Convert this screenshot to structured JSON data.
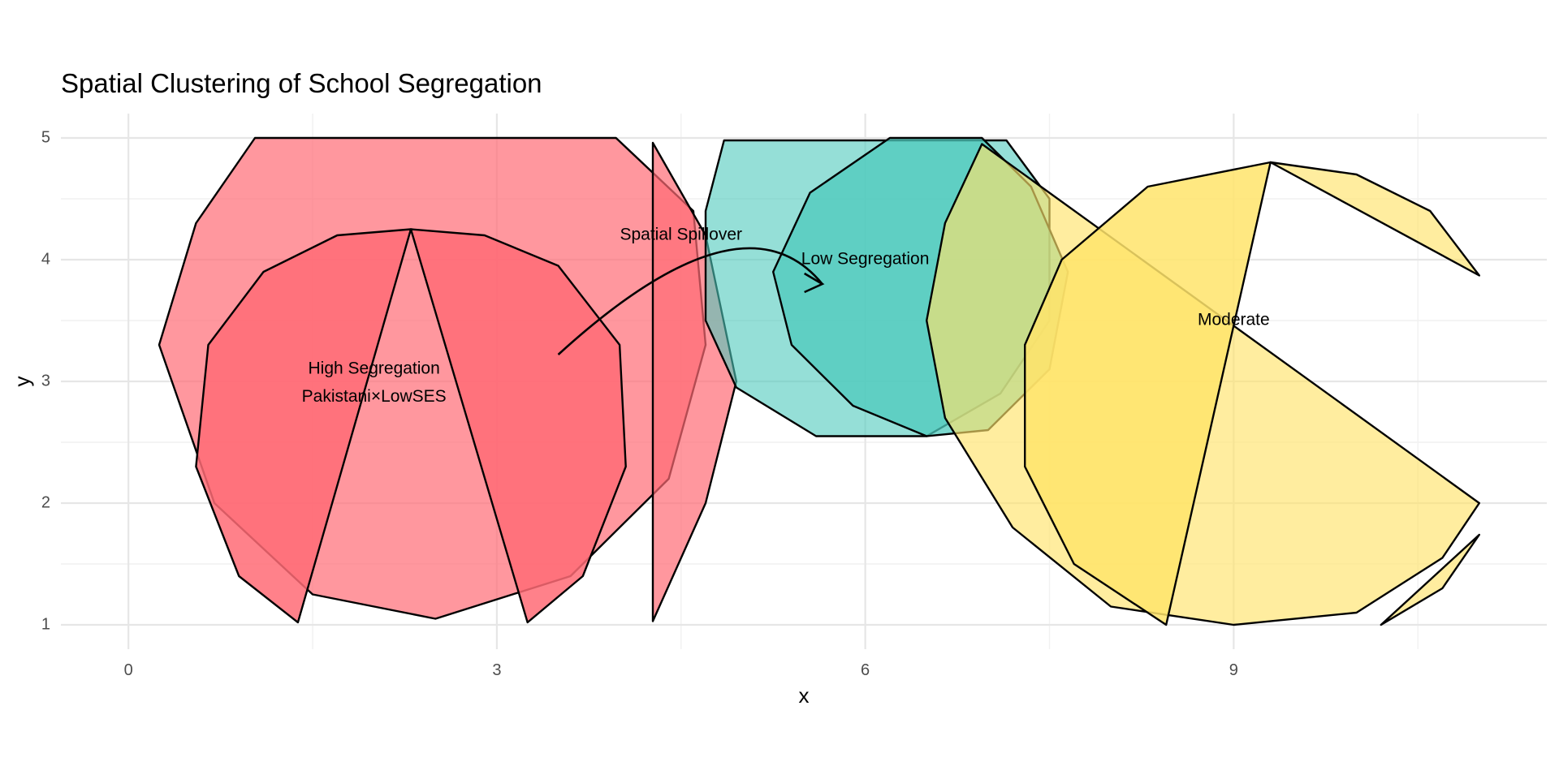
{
  "chart_data": {
    "type": "area",
    "title": "Spatial Clustering of School Segregation",
    "xlabel": "x",
    "ylabel": "y",
    "xlim": [
      -0.55,
      11.55
    ],
    "ylim": [
      0.8,
      5.2
    ],
    "x_ticks": [
      0,
      3,
      6,
      9
    ],
    "x_tick_labels": [
      "0",
      "3",
      "6",
      "9"
    ],
    "y_ticks": [
      1,
      2,
      3,
      4,
      5
    ],
    "y_tick_labels": [
      "1",
      "2",
      "3",
      "4",
      "5"
    ],
    "x_minor": [
      1.5,
      4.5,
      7.5,
      10.5
    ],
    "y_minor": [
      1.5,
      2.5,
      3.5,
      4.5
    ],
    "grid": true,
    "colors": {
      "high": "#ff6b75",
      "low": "#4ec9bc",
      "moderate": "#ffe46b"
    },
    "shapes": [
      {
        "name": "high-segregation-large-circle",
        "color": "#ff6b75",
        "opacity": 0.7,
        "points": [
          [
            1.03,
            5.0
          ],
          [
            3.97,
            5.0
          ],
          [
            4.6,
            4.4
          ],
          [
            4.7,
            3.3
          ],
          [
            4.4,
            2.2
          ],
          [
            3.6,
            1.4
          ],
          [
            2.5,
            1.05
          ],
          [
            1.5,
            1.25
          ],
          [
            0.7,
            2.0
          ],
          [
            0.25,
            3.3
          ],
          [
            0.55,
            4.3
          ]
        ]
      },
      {
        "name": "high-segregation-crescent",
        "color": "#ff6b75",
        "opacity": 0.7,
        "points": [
          [
            4.27,
            4.96
          ],
          [
            4.7,
            4.2
          ],
          [
            4.95,
            3.0
          ],
          [
            4.7,
            2.0
          ],
          [
            4.27,
            1.03
          ]
        ]
      },
      {
        "name": "high-segregation-pie",
        "color": "#ff6b75",
        "opacity": 0.85,
        "points": [
          [
            2.3,
            4.25
          ],
          [
            1.38,
            1.02
          ],
          [
            0.9,
            1.4
          ],
          [
            0.55,
            2.3
          ],
          [
            0.65,
            3.3
          ],
          [
            1.1,
            3.9
          ],
          [
            1.7,
            4.2
          ]
        ]
      },
      {
        "name": "high-segregation-pie-right",
        "color": "#ff6b75",
        "opacity": 0.85,
        "points": [
          [
            2.3,
            4.25
          ],
          [
            3.25,
            1.02
          ],
          [
            3.7,
            1.4
          ],
          [
            4.05,
            2.3
          ],
          [
            4.0,
            3.3
          ],
          [
            3.5,
            3.95
          ],
          [
            2.9,
            4.2
          ]
        ]
      },
      {
        "name": "low-segregation-large",
        "color": "#4ec9bc",
        "opacity": 0.6,
        "points": [
          [
            4.85,
            4.98
          ],
          [
            7.15,
            4.98
          ],
          [
            7.5,
            4.5
          ],
          [
            7.5,
            3.5
          ],
          [
            7.1,
            2.9
          ],
          [
            6.5,
            2.55
          ],
          [
            5.6,
            2.55
          ],
          [
            4.95,
            2.95
          ],
          [
            4.7,
            3.5
          ],
          [
            4.7,
            4.4
          ]
        ]
      },
      {
        "name": "low-segregation-inner",
        "color": "#4ec9bc",
        "opacity": 0.75,
        "points": [
          [
            6.2,
            5.0
          ],
          [
            6.95,
            5.0
          ],
          [
            7.35,
            4.6
          ],
          [
            7.65,
            3.9
          ],
          [
            7.5,
            3.1
          ],
          [
            7.0,
            2.6
          ],
          [
            6.5,
            2.55
          ],
          [
            5.9,
            2.8
          ],
          [
            5.4,
            3.3
          ],
          [
            5.25,
            3.9
          ],
          [
            5.55,
            4.55
          ]
        ]
      },
      {
        "name": "moderate-large-pie",
        "color": "#ffe46b",
        "opacity": 0.65,
        "points": [
          [
            6.95,
            4.95
          ],
          [
            11.0,
            2.0
          ],
          [
            10.7,
            1.55
          ],
          [
            10.0,
            1.1
          ],
          [
            9.0,
            1.0
          ],
          [
            8.0,
            1.15
          ],
          [
            7.2,
            1.8
          ],
          [
            6.65,
            2.7
          ],
          [
            6.5,
            3.5
          ],
          [
            6.65,
            4.3
          ]
        ]
      },
      {
        "name": "moderate-right-wedge",
        "color": "#ffe46b",
        "opacity": 0.85,
        "points": [
          [
            9.3,
            4.8
          ],
          [
            8.45,
            1.0
          ],
          [
            7.7,
            1.5
          ],
          [
            7.3,
            2.3
          ],
          [
            7.3,
            3.3
          ],
          [
            7.6,
            4.0
          ],
          [
            8.3,
            4.6
          ]
        ]
      },
      {
        "name": "moderate-top-sliver",
        "color": "#ffe46b",
        "opacity": 0.65,
        "points": [
          [
            9.3,
            4.8
          ],
          [
            11.0,
            3.87
          ],
          [
            10.6,
            4.4
          ],
          [
            10.0,
            4.7
          ]
        ]
      },
      {
        "name": "moderate-bottom-sliver",
        "color": "#ffe46b",
        "opacity": 0.65,
        "points": [
          [
            10.2,
            1.0
          ],
          [
            11.0,
            1.74
          ],
          [
            10.7,
            1.3
          ]
        ]
      }
    ],
    "arrow": {
      "from": [
        3.5,
        3.22
      ],
      "control": [
        5.0,
        4.6
      ],
      "to": [
        5.65,
        3.8
      ]
    },
    "annotations": [
      {
        "x": 2.0,
        "y": 3.1,
        "text": "High Segregation"
      },
      {
        "x": 2.0,
        "y": 2.87,
        "text": "Pakistani×LowSES"
      },
      {
        "x": 4.5,
        "y": 4.2,
        "text": "Spatial Spillover"
      },
      {
        "x": 6.0,
        "y": 4.0,
        "text": "Low Segregation"
      },
      {
        "x": 9.0,
        "y": 3.5,
        "text": "Moderate"
      }
    ]
  }
}
